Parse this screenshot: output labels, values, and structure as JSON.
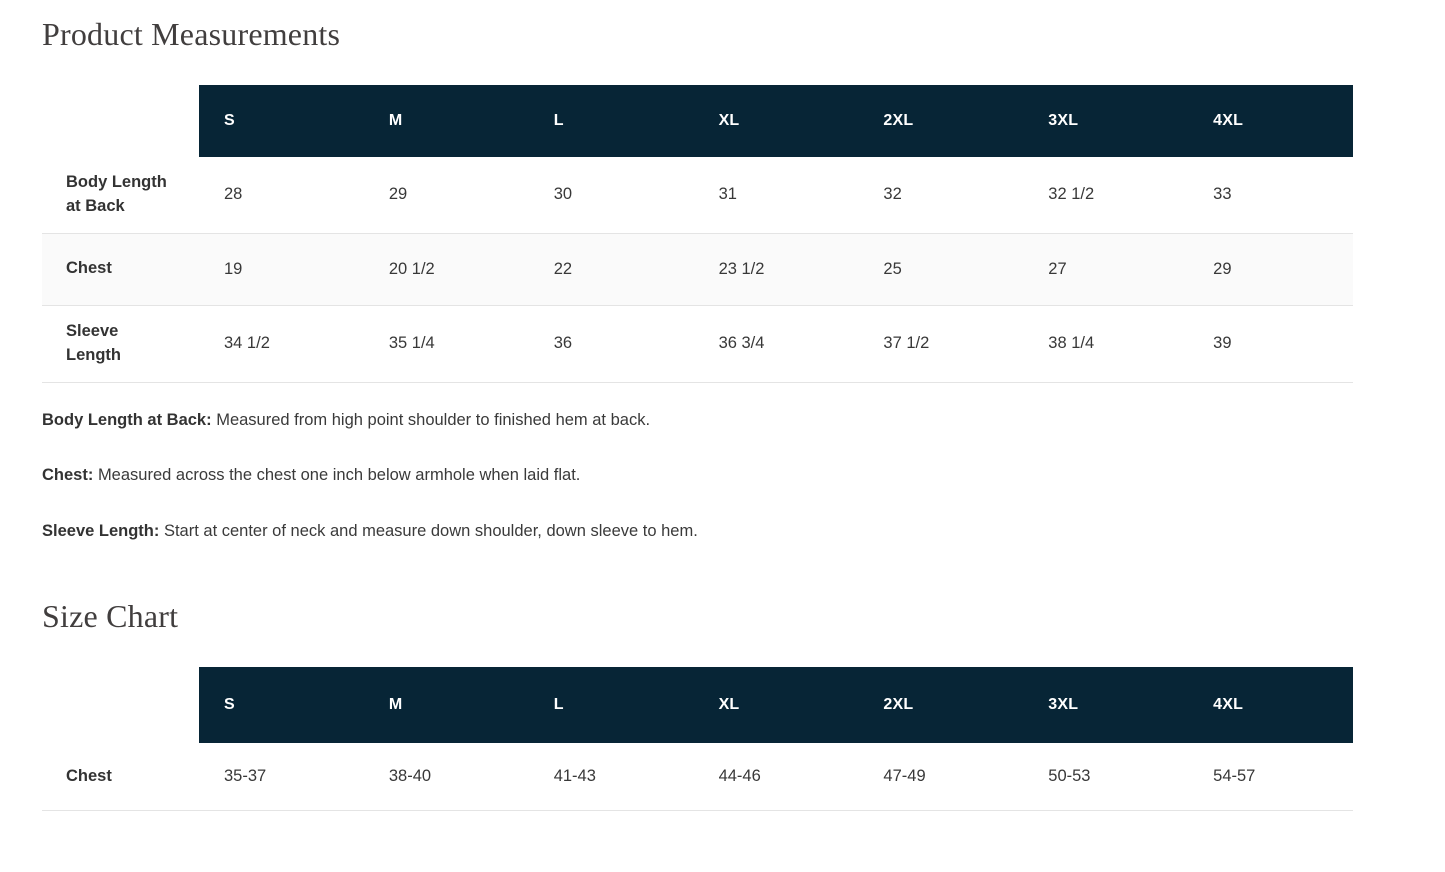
{
  "colors": {
    "header_bg": "#072536",
    "header_text": "#ffffff",
    "alt_row_bg": "#fafafa",
    "divider": "#e4e4e4",
    "title_color": "#413e3e",
    "text_color": "#383838"
  },
  "product_measurements": {
    "title": "Product Measurements",
    "columns": [
      "S",
      "M",
      "L",
      "XL",
      "2XL",
      "3XL",
      "4XL"
    ],
    "rows": [
      {
        "label": "Body Length at Back",
        "values": [
          "28",
          "29",
          "30",
          "31",
          "32",
          "32 1/2",
          "33"
        ]
      },
      {
        "label": "Chest",
        "values": [
          "19",
          "20 1/2",
          "22",
          "23 1/2",
          "25",
          "27",
          "29"
        ]
      },
      {
        "label": "Sleeve Length",
        "values": [
          "34 1/2",
          "35 1/4",
          "36",
          "36 3/4",
          "37 1/2",
          "38 1/4",
          "39"
        ]
      }
    ],
    "notes": [
      {
        "term": "Body Length at Back:",
        "definition": "Measured from high point shoulder to finished hem at back."
      },
      {
        "term": "Chest:",
        "definition": "Measured across the chest one inch below armhole when laid flat."
      },
      {
        "term": "Sleeve Length:",
        "definition": "Start at center of neck and measure down shoulder, down sleeve to hem."
      }
    ]
  },
  "size_chart": {
    "title": "Size Chart",
    "columns": [
      "S",
      "M",
      "L",
      "XL",
      "2XL",
      "3XL",
      "4XL"
    ],
    "rows": [
      {
        "label": "Chest",
        "values": [
          "35-37",
          "38-40",
          "41-43",
          "44-46",
          "47-49",
          "50-53",
          "54-57"
        ]
      }
    ]
  }
}
